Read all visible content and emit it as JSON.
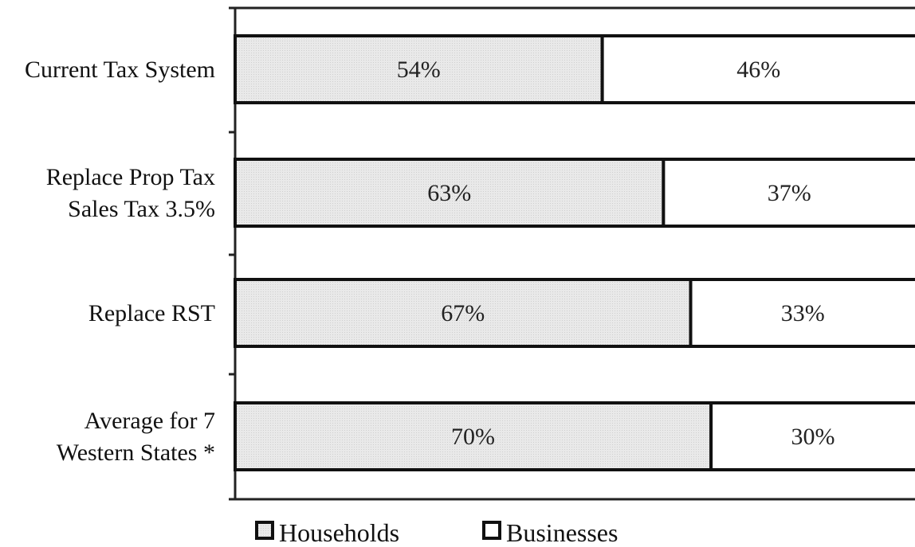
{
  "chart_data": {
    "type": "bar",
    "orientation": "horizontal",
    "stacked": "percent",
    "categories": [
      [
        "Current Tax System"
      ],
      [
        "Replace Prop Tax",
        "Sales Tax 3.5%"
      ],
      [
        "Replace RST"
      ],
      [
        "Average for 7",
        "Western States *"
      ]
    ],
    "series": [
      {
        "name": "Households",
        "values": [
          54,
          63,
          67,
          70
        ],
        "labels": [
          "54%",
          "63%",
          "67%",
          "70%"
        ],
        "color": "#e6e6e6"
      },
      {
        "name": "Businesses",
        "values": [
          46,
          37,
          33,
          30
        ],
        "labels": [
          "46%",
          "37%",
          "33%",
          "30%"
        ],
        "color": "#ffffff"
      }
    ],
    "xlim": [
      0,
      100
    ],
    "grid": false,
    "legend": "bottom"
  }
}
